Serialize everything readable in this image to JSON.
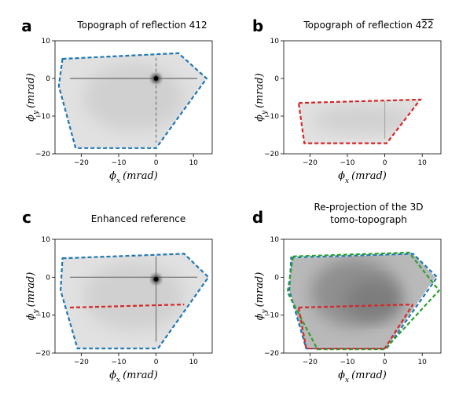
{
  "chart_data": [
    {
      "type": "heatmap",
      "panel": "a",
      "title": "Topograph of reflection 412",
      "xlabel": "ϕx (mrad)",
      "ylabel": "ϕy (mrad)",
      "xticks": [
        -20,
        -10,
        0,
        10
      ],
      "yticks": [
        10,
        0,
        -10,
        -20
      ],
      "xlim": [
        -27,
        15
      ],
      "ylim": [
        -20,
        10
      ],
      "grid": false,
      "outlines": [
        {
          "color": "#1f77b4",
          "points": [
            [
              -25,
              5.2
            ],
            [
              6,
              6.7
            ],
            [
              13.5,
              0
            ],
            [
              0,
              -18.5
            ],
            [
              -21.5,
              -18.5
            ],
            [
              -26,
              -2
            ]
          ]
        }
      ],
      "features": [
        {
          "kind": "horizontal_streak",
          "y": 0,
          "x_from": -23,
          "x_to": 11
        },
        {
          "kind": "vertical_streak",
          "x": 0,
          "y_from": 5.5,
          "y_to": -17
        },
        {
          "kind": "bright_spot",
          "x": 0,
          "y": 0
        }
      ],
      "region": [
        [
          -25,
          5.2
        ],
        [
          6,
          6.7
        ],
        [
          13.5,
          0
        ],
        [
          0,
          -18.5
        ],
        [
          -21.5,
          -18.5
        ],
        [
          -26,
          -2
        ]
      ]
    },
    {
      "type": "heatmap",
      "panel": "b",
      "title": "Topograph of reflection 4",
      "title_suffix": "2̄2̄",
      "xlabel": "ϕx (mrad)",
      "ylabel": "ϕy (mrad)",
      "xticks": [
        -20,
        -10,
        0,
        10
      ],
      "yticks": [
        10,
        0,
        -10,
        -20
      ],
      "xlim": [
        -27,
        15
      ],
      "ylim": [
        -20,
        10
      ],
      "grid": false,
      "outlines": [
        {
          "color": "#d62728",
          "points": [
            [
              -23,
              -6.5
            ],
            [
              9.5,
              -5.6
            ],
            [
              0.5,
              -17.2
            ],
            [
              -21.5,
              -17.2
            ]
          ]
        }
      ],
      "features": [
        {
          "kind": "vertical_streak",
          "x": 0,
          "y_from": -6,
          "y_to": -16
        }
      ],
      "region": [
        [
          -23,
          -6.5
        ],
        [
          9.5,
          -5.6
        ],
        [
          0.5,
          -17.2
        ],
        [
          -21.5,
          -17.2
        ]
      ]
    },
    {
      "type": "heatmap",
      "panel": "c",
      "title": "Enhanced reference",
      "xlabel": "ϕx (mrad)",
      "ylabel": "ϕy (mrad)",
      "xticks": [
        -20,
        -10,
        0,
        10
      ],
      "yticks": [
        10,
        0,
        -10,
        -20
      ],
      "xlim": [
        -27,
        15
      ],
      "ylim": [
        -20,
        10
      ],
      "grid": false,
      "outlines": [
        {
          "color": "#1f77b4",
          "points": [
            [
              -25,
              5
            ],
            [
              7.5,
              6.2
            ],
            [
              14,
              0
            ],
            [
              0.5,
              -18.8
            ],
            [
              -21,
              -18.8
            ],
            [
              -25.5,
              -3.5
            ]
          ]
        },
        {
          "color": "#d62728",
          "points": [
            [
              -23,
              -8
            ],
            [
              7.5,
              -7.2
            ]
          ],
          "open": true
        }
      ],
      "features": [
        {
          "kind": "horizontal_streak",
          "y": 0,
          "x_from": -23,
          "x_to": 11
        },
        {
          "kind": "vertical_streak",
          "x": 0,
          "y_from": 5.5,
          "y_to": -17
        },
        {
          "kind": "bright_spot",
          "x": 0,
          "y": -0.5
        }
      ],
      "region": [
        [
          -25,
          5
        ],
        [
          7.5,
          6.2
        ],
        [
          14,
          0
        ],
        [
          0.5,
          -18.8
        ],
        [
          -21,
          -18.8
        ],
        [
          -25.5,
          -3.5
        ]
      ]
    },
    {
      "type": "heatmap",
      "panel": "d",
      "title": "Re-projection of the 3D",
      "title_line2": "tomo-topograph",
      "xlabel": "ϕx (mrad)",
      "ylabel": "ϕy (mrad)",
      "xticks": [
        -20,
        -10,
        0,
        10
      ],
      "yticks": [
        10,
        0,
        -10,
        -20
      ],
      "xlim": [
        -27,
        15
      ],
      "ylim": [
        -20,
        10
      ],
      "grid": false,
      "outlines": [
        {
          "color": "#1f77b4",
          "points": [
            [
              -25,
              5.2
            ],
            [
              7.5,
              6.2
            ],
            [
              14,
              0
            ],
            [
              0.5,
              -18.8
            ],
            [
              -21,
              -18.8
            ],
            [
              -25.5,
              -3.5
            ]
          ]
        },
        {
          "color": "#2ca02c",
          "points": [
            [
              -24.5,
              5.5
            ],
            [
              6.5,
              6.5
            ],
            [
              14.5,
              -3.5
            ],
            [
              0,
              -19
            ],
            [
              -18,
              -19
            ],
            [
              -26,
              -4
            ]
          ]
        },
        {
          "color": "#d62728",
          "points": [
            [
              -23,
              -8
            ],
            [
              7.5,
              -7.2
            ]
          ],
          "open": true
        },
        {
          "color": "#d62728",
          "points": [
            [
              -23,
              -8
            ],
            [
              -21,
              -18.8
            ],
            [
              0,
              -18.8
            ],
            [
              7.5,
              -7.2
            ]
          ],
          "open": true
        }
      ],
      "features": [],
      "region": [
        [
          -25,
          5
        ],
        [
          7.5,
          6.2
        ],
        [
          13.5,
          0
        ],
        [
          0.5,
          -18.5
        ],
        [
          -21,
          -18.5
        ],
        [
          -25.5,
          -3.5
        ]
      ]
    }
  ]
}
